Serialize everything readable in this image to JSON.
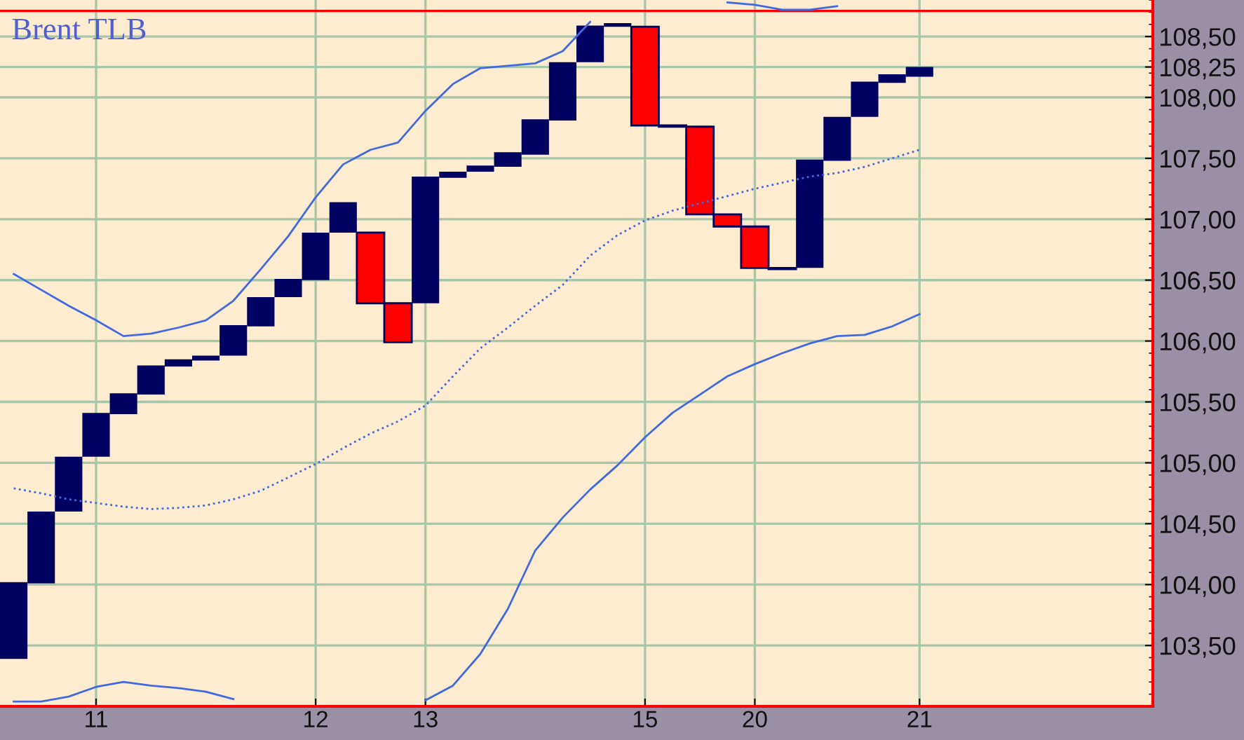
{
  "chart_data": {
    "type": "bar",
    "title": "Brent TLB",
    "categories": [
      null,
      null,
      null,
      "11",
      null,
      null,
      null,
      null,
      null,
      null,
      null,
      "12",
      null,
      null,
      null,
      "13",
      null,
      null,
      null,
      null,
      null,
      null,
      null,
      "15",
      null,
      null,
      null,
      "20",
      null,
      null,
      null,
      null,
      null,
      "21",
      null,
      null,
      null,
      null,
      null,
      null,
      null,
      null
    ],
    "series": [
      {
        "colors": [
          "#000060",
          "#000060",
          "#000060",
          "#000060",
          "#000060",
          "#000060",
          "#000060",
          "#000060",
          "#000060",
          "#000060",
          "#000060",
          "#000060",
          "#000060",
          "#ff0000",
          "#ff0000",
          "#000060",
          "#000060",
          "#000060",
          "#000060",
          "#000060",
          "#000060",
          "#000060",
          "#000060",
          "#ff0000",
          "#ff0000",
          "#ff0000",
          "#ff0000",
          "#ff0000",
          "#ff0000",
          "#000060",
          "#000060",
          "#000060",
          "#000060",
          "#000060",
          null,
          null,
          null,
          null,
          null,
          null,
          null,
          null
        ],
        "base": [
          103.39,
          104.01,
          104.6,
          105.05,
          105.4,
          105.56,
          105.79,
          105.84,
          105.88,
          106.12,
          106.36,
          106.5,
          106.89,
          106.89,
          106.31,
          106.31,
          107.34,
          107.39,
          107.43,
          107.53,
          107.81,
          108.29,
          108.58,
          108.58,
          107.77,
          107.76,
          107.04,
          106.94,
          106.6,
          106.6,
          107.48,
          107.84,
          108.12,
          108.17,
          null,
          null,
          null,
          null,
          null,
          null,
          null,
          null
        ],
        "values": [
          0.63,
          0.59,
          0.45,
          0.36,
          0.17,
          0.24,
          0.06,
          0.04,
          0.25,
          0.24,
          0.15,
          0.39,
          0.25,
          -0.58,
          -0.32,
          1.04,
          0.05,
          0.05,
          0.12,
          0.29,
          0.48,
          0.3,
          0.03,
          -0.81,
          -0.01,
          -0.72,
          -0.1,
          -0.34,
          -0.01,
          0.89,
          0.36,
          0.29,
          0.07,
          0.08,
          null,
          null,
          null,
          null,
          null,
          null,
          null,
          null
        ]
      },
      {
        "type": "line",
        "color": "#4169e1",
        "line_style": "solid",
        "values": [
          106.55,
          106.42,
          106.29,
          106.17,
          106.04,
          106.06,
          106.11,
          106.17,
          106.33,
          106.59,
          106.86,
          107.18,
          107.45,
          107.57,
          107.63,
          107.89,
          108.11,
          108.24,
          108.26,
          108.28,
          108.38,
          108.62,
          null,
          null,
          null,
          null,
          108.78,
          108.76,
          108.72,
          108.72,
          108.75,
          null,
          null,
          null,
          null,
          null,
          null,
          null,
          null,
          null,
          null,
          null
        ]
      },
      {
        "type": "line",
        "color": "#4169e1",
        "line_style": "dotted",
        "values": [
          104.79,
          104.75,
          104.7,
          104.67,
          104.64,
          104.62,
          104.63,
          104.65,
          104.7,
          104.77,
          104.88,
          104.99,
          105.12,
          105.24,
          105.34,
          105.47,
          105.71,
          105.94,
          106.11,
          106.29,
          106.46,
          106.7,
          106.87,
          106.99,
          107.07,
          107.13,
          107.19,
          107.25,
          107.3,
          107.35,
          107.38,
          107.43,
          107.5,
          107.57,
          null,
          null,
          null,
          null,
          null,
          null,
          null,
          null
        ]
      },
      {
        "type": "line",
        "color": "#4169e1",
        "line_style": "solid",
        "values": [
          103.04,
          103.04,
          103.08,
          103.16,
          103.2,
          103.17,
          103.15,
          103.12,
          103.06,
          null,
          null,
          null,
          null,
          null,
          null,
          103.05,
          103.17,
          103.43,
          103.8,
          104.28,
          104.55,
          104.78,
          104.98,
          105.21,
          105.41,
          105.56,
          105.71,
          105.81,
          105.9,
          105.98,
          106.04,
          106.05,
          106.12,
          106.22,
          null,
          null,
          null,
          null,
          null,
          null,
          null,
          null
        ]
      }
    ],
    "ylim": [
      103.0,
      108.8
    ],
    "yticks": [
      {
        "value": 103.5,
        "label": "103,50"
      },
      {
        "value": 104,
        "label": "104,00"
      },
      {
        "value": 104.5,
        "label": "104,50"
      },
      {
        "value": 105,
        "label": "105,00"
      },
      {
        "value": 105.5,
        "label": "105,50"
      },
      {
        "value": 106,
        "label": "106,00"
      },
      {
        "value": 106.5,
        "label": "106,50"
      },
      {
        "value": 107,
        "label": "107,00"
      },
      {
        "value": 107.5,
        "label": "107,50"
      },
      {
        "value": 108,
        "label": "108,00"
      },
      {
        "value": 108.25,
        "label": "108,25"
      },
      {
        "value": 108.5,
        "label": "108,50"
      }
    ],
    "grid": true,
    "ref_lines": [
      {
        "axis": "y",
        "value": 108.71,
        "color": "#ff0000"
      }
    ]
  }
}
